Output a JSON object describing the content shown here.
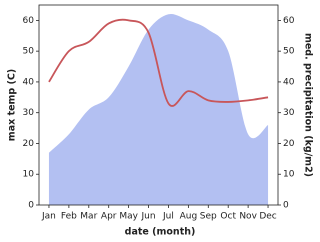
{
  "chart_data": {
    "type": "line-area",
    "categories": [
      "Jan",
      "Feb",
      "Mar",
      "Apr",
      "May",
      "Jun",
      "Jul",
      "Aug",
      "Sep",
      "Oct",
      "Nov",
      "Dec"
    ],
    "x_label": "date (month)",
    "y_label": "max temp (C)",
    "y2_label": "med. precipitation (kg/m2)",
    "ylim": [
      0,
      65
    ],
    "yticks": [
      0,
      10,
      20,
      30,
      40,
      50,
      60
    ],
    "y2lim": [
      0,
      65
    ],
    "y2ticks": [
      0,
      10,
      20,
      30,
      40,
      50,
      60
    ],
    "series": [
      {
        "name": "precipitation",
        "type": "area",
        "axis": "y2",
        "color": "#b3c0f2",
        "values": [
          17,
          23,
          31,
          35,
          45,
          57,
          62,
          60,
          57,
          50,
          23,
          26
        ]
      },
      {
        "name": "temperature",
        "type": "line",
        "color": "#c8565a",
        "values": [
          40,
          50,
          53,
          59,
          60,
          56,
          33,
          37,
          34,
          33.5,
          34,
          35
        ]
      }
    ]
  }
}
